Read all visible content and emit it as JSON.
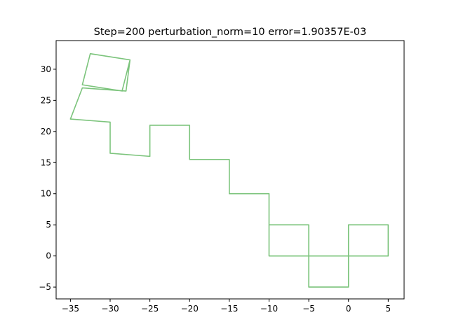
{
  "chart_data": {
    "type": "line",
    "title": "Step=200 perturbation_norm=10 error=1.90357E-03",
    "xlabel": "",
    "ylabel": "",
    "xlim": [
      -36.8,
      7.0
    ],
    "ylim": [
      -6.9,
      34.6
    ],
    "xticks": [
      -35,
      -30,
      -25,
      -20,
      -15,
      -10,
      -5,
      0,
      5
    ],
    "yticks": [
      -5,
      0,
      5,
      10,
      15,
      20,
      25,
      30
    ],
    "grid": false,
    "series": [
      {
        "color": "#7cc47c",
        "points": [
          [
            0,
            0
          ],
          [
            0,
            5
          ],
          [
            5,
            5
          ],
          [
            5,
            0
          ],
          [
            0,
            0
          ],
          [
            0,
            -5
          ],
          [
            -5,
            -5
          ],
          [
            -5,
            0
          ],
          [
            -5,
            5
          ],
          [
            -10,
            5
          ],
          [
            -10,
            0
          ],
          [
            -5,
            0
          ],
          [
            0,
            0
          ],
          [
            0,
            5
          ],
          [
            5,
            5
          ],
          [
            5,
            0
          ],
          [
            0,
            0
          ],
          [
            -5,
            0
          ],
          [
            -10,
            0
          ],
          [
            -10,
            5
          ],
          [
            -10,
            10
          ],
          [
            -15,
            10
          ],
          [
            -15,
            15.5
          ],
          [
            -20,
            15.5
          ],
          [
            -20,
            21
          ],
          [
            -25,
            21
          ],
          [
            -25,
            16
          ],
          [
            -30,
            16.5
          ],
          [
            -30,
            21.5
          ],
          [
            -35,
            22
          ],
          [
            -33.5,
            27
          ],
          [
            -28,
            26.5
          ],
          [
            -27.5,
            31.5
          ],
          [
            -32.5,
            32.5
          ],
          [
            -33.5,
            27.5
          ],
          [
            -28.5,
            26.5
          ],
          [
            -27.5,
            31.5
          ],
          [
            -32.5,
            32.5
          ],
          [
            -33.5,
            27.5
          ]
        ]
      }
    ]
  }
}
